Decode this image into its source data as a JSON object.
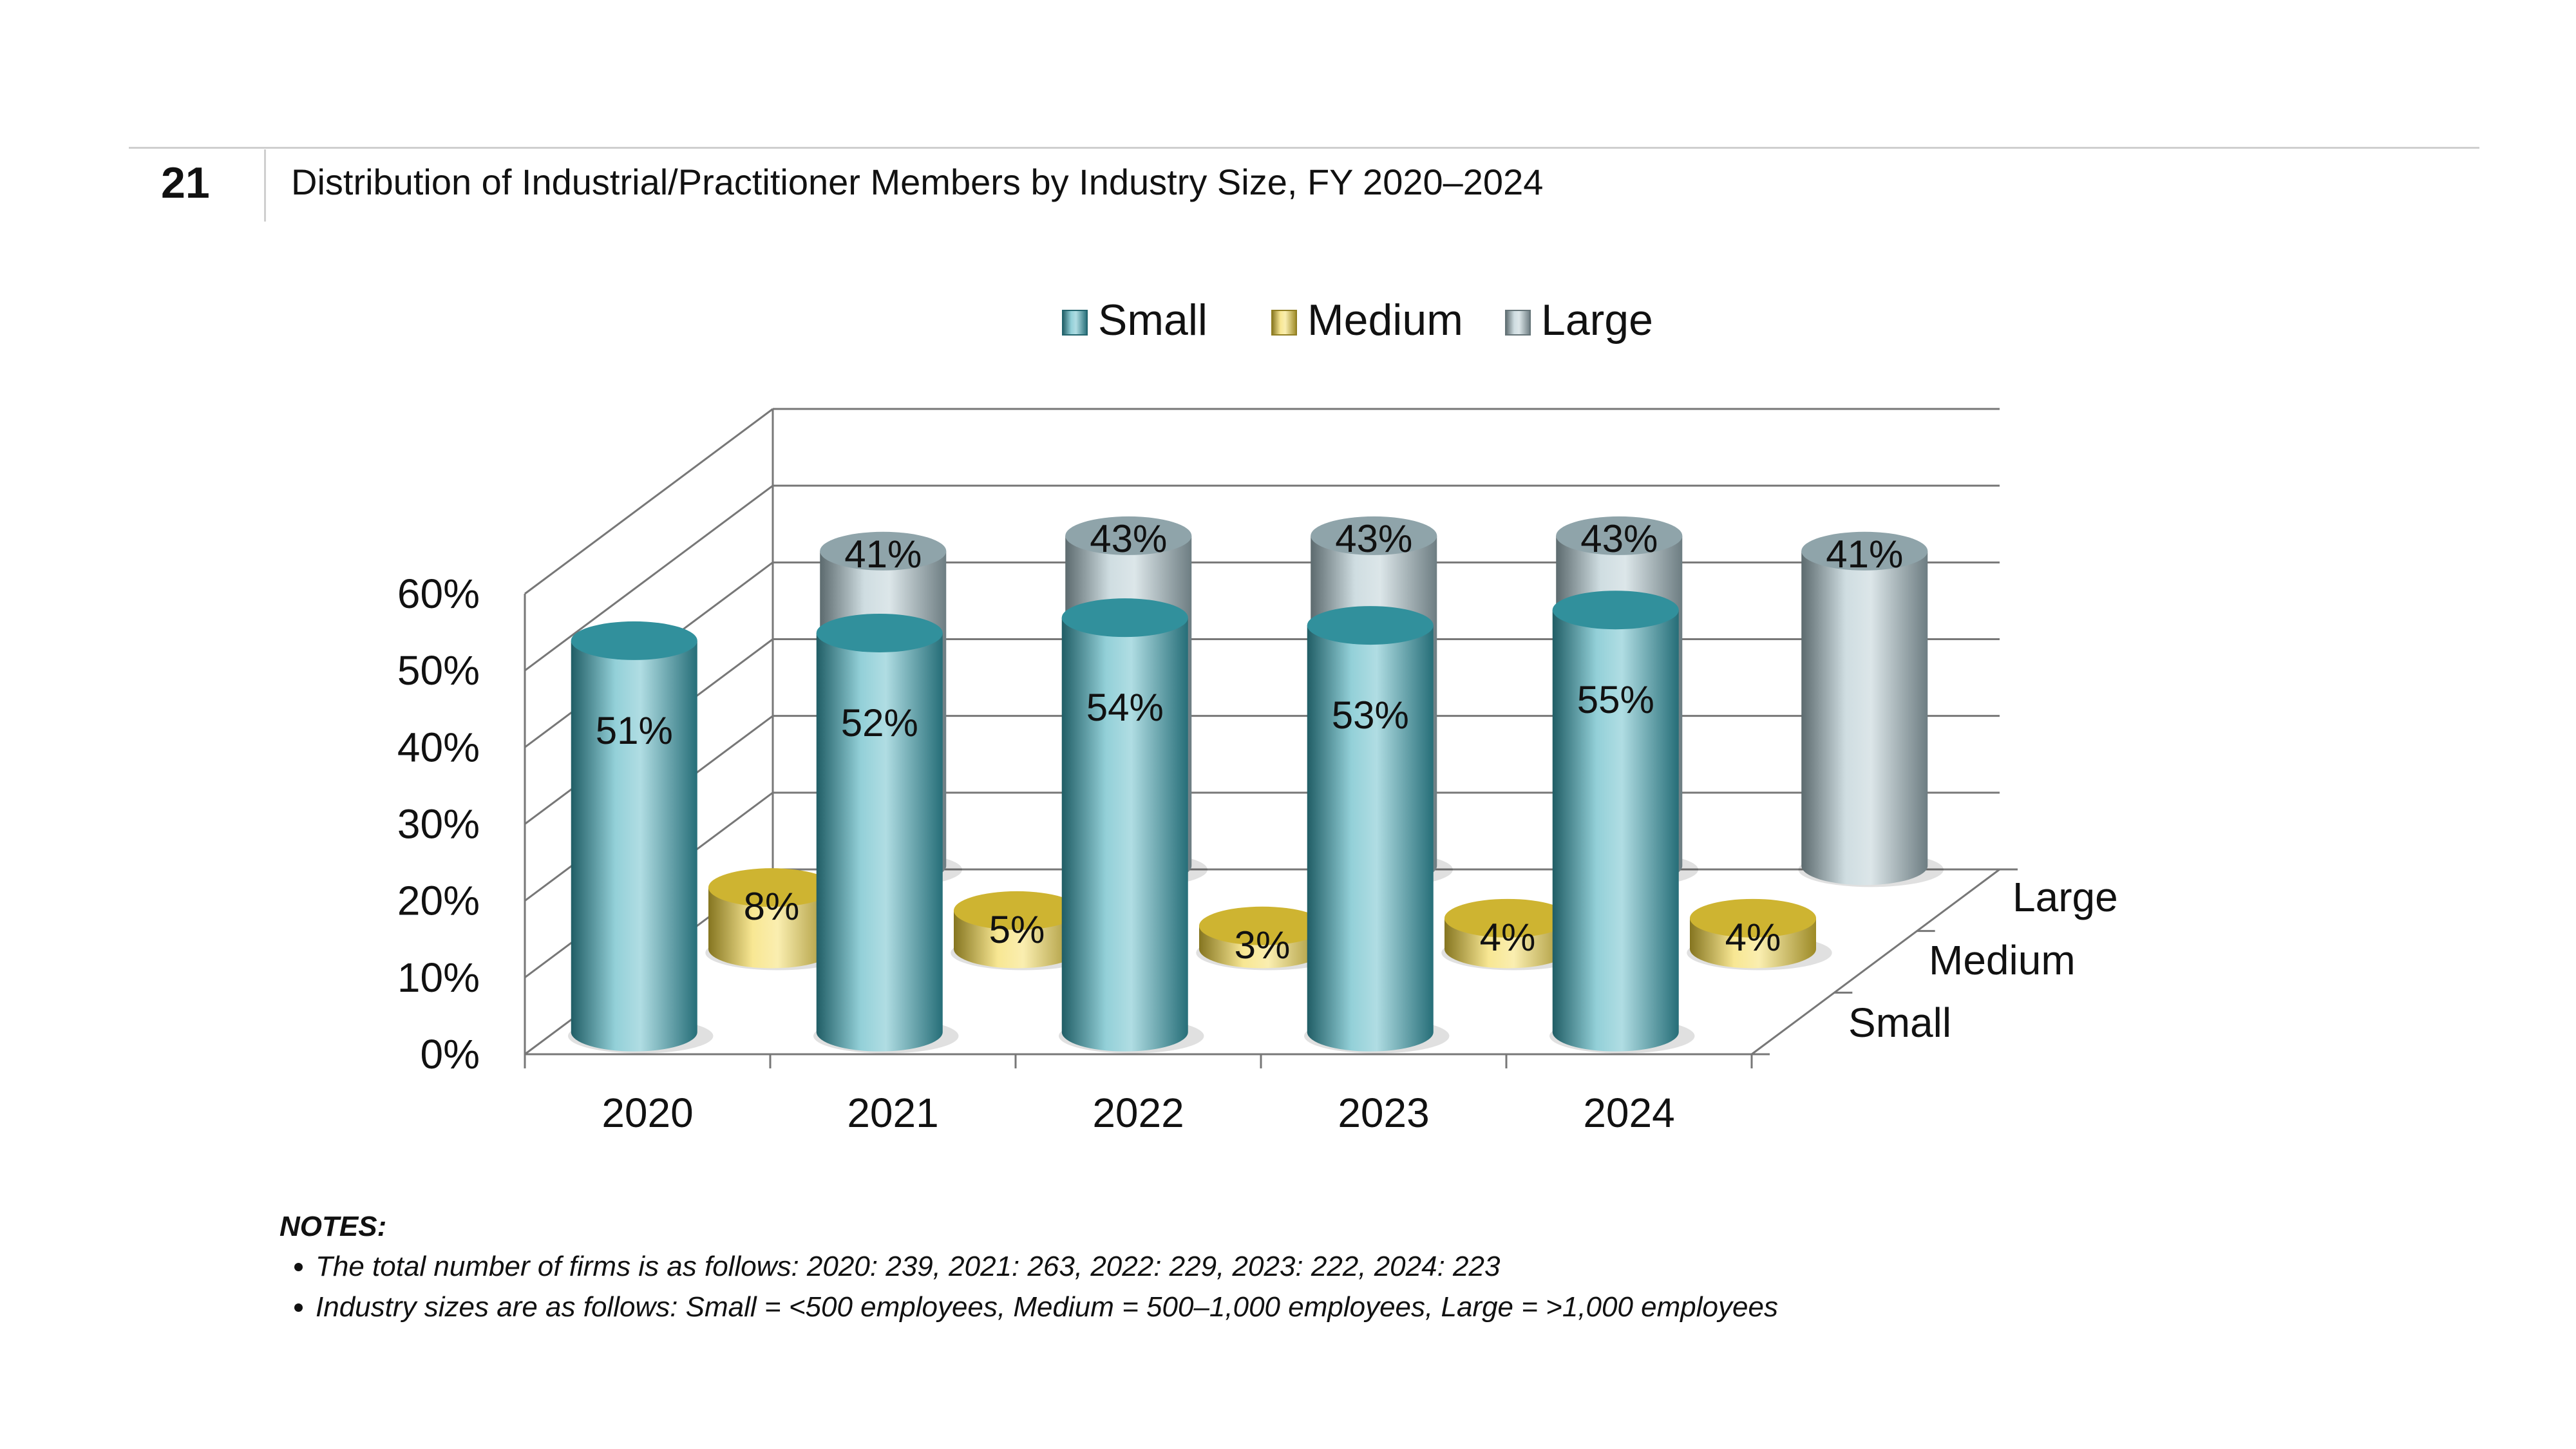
{
  "figure": {
    "number": "21",
    "title": "Distribution of Industrial/Practitioner Members by Industry Size, FY 2020–2024"
  },
  "chart_data": {
    "type": "bar",
    "style": "3d-cylinder",
    "categories": [
      "2020",
      "2021",
      "2022",
      "2023",
      "2024"
    ],
    "series": [
      {
        "name": "Small",
        "values": [
          51,
          52,
          54,
          53,
          55
        ],
        "labels": [
          "51%",
          "52%",
          "54%",
          "53%",
          "55%"
        ],
        "color": "#3aa9b8"
      },
      {
        "name": "Medium",
        "values": [
          8,
          5,
          3,
          4,
          4
        ],
        "labels": [
          "8%",
          "5%",
          "3%",
          "4%",
          "4%"
        ],
        "color": "#f2d43a"
      },
      {
        "name": "Large",
        "values": [
          41,
          43,
          43,
          43,
          41
        ],
        "labels": [
          "41%",
          "43%",
          "43%",
          "43%",
          "41%"
        ],
        "color": "#a8c1c8"
      }
    ],
    "y_ticks": [
      "0%",
      "10%",
      "20%",
      "30%",
      "40%",
      "50%",
      "60%"
    ],
    "ylim": [
      0,
      60
    ],
    "depth_labels": [
      "Small",
      "Medium",
      "Large"
    ],
    "legend": {
      "position": "top"
    },
    "grid": true
  },
  "notes": {
    "title": "NOTES:",
    "items": [
      "The total number of firms is as follows: 2020: 239, 2021: 263, 2022: 229, 2023: 222, 2024: 223",
      "Industry sizes are as follows: Small = <500 employees, Medium = 500–1,000 employees, Large = >1,000 employees"
    ]
  }
}
